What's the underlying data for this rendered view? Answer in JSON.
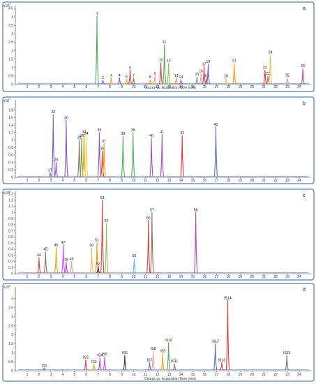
{
  "figure": {
    "xlabel": "Counts vs. Acquisition Time (min)"
  },
  "chart_data": [
    {
      "type": "line",
      "panel": "a",
      "ylabel": "x10^6",
      "scale_label": "x10",
      "scale_exponent": "6",
      "xlabel": "Counts vs. Acquisition Time (min)",
      "xlim": [
        0,
        25
      ],
      "ylim": [
        0,
        4.5
      ],
      "x_ticks": [
        1,
        2,
        3,
        4,
        5,
        6,
        7,
        8,
        9,
        10,
        11,
        12,
        13,
        14,
        15,
        16,
        17,
        18,
        19,
        20,
        21,
        22,
        23,
        24
      ],
      "y_ticks": [
        0,
        0.5,
        1,
        1.5,
        2,
        2.5,
        3,
        3.5,
        4,
        4.5
      ],
      "y_tick_labels": [
        "0",
        "0.5",
        "1",
        "1.5",
        "2",
        "2.5",
        "3",
        "3.5",
        "4",
        "4.5"
      ],
      "peaks": [
        {
          "label": "1",
          "x": 6.9,
          "y": 4.05,
          "color": "#4caf50"
        },
        {
          "label": "2",
          "x": 7.4,
          "y": 0.25,
          "color": "#7e57c2"
        },
        {
          "label": "3",
          "x": 8.1,
          "y": 0.35,
          "color": "#ff9800"
        },
        {
          "label": "4",
          "x": 8.8,
          "y": 0.4,
          "color": "#7e57c2"
        },
        {
          "label": "5",
          "x": 9.4,
          "y": 0.3,
          "color": "#ff9800"
        },
        {
          "label": "6",
          "x": 9.7,
          "y": 0.85,
          "color": "#e53935"
        },
        {
          "label": "7",
          "x": 10.0,
          "y": 0.38,
          "color": "#8d6e63"
        },
        {
          "label": "8",
          "x": 11.4,
          "y": 0.28,
          "color": "#ff9800"
        },
        {
          "label": "9",
          "x": 11.8,
          "y": 0.5,
          "color": "#ef9a9a"
        },
        {
          "label": "10",
          "x": 12.3,
          "y": 1.3,
          "color": "#e53935"
        },
        {
          "label": "11",
          "x": 12.6,
          "y": 2.35,
          "color": "#4caf50"
        },
        {
          "label": "12",
          "x": 12.95,
          "y": 1.25,
          "color": "#8bc34a"
        },
        {
          "label": "13",
          "x": 13.6,
          "y": 0.38,
          "color": "#ff9800"
        },
        {
          "label": "14",
          "x": 14.0,
          "y": 0.28,
          "color": "#7e57c2"
        },
        {
          "label": "15",
          "x": 15.35,
          "y": 0.45,
          "color": "#4caf50"
        },
        {
          "label": "16",
          "x": 15.7,
          "y": 0.65,
          "color": "#ef9a9a"
        },
        {
          "label": "17",
          "x": 15.95,
          "y": 1.05,
          "color": "#e53935"
        },
        {
          "label": "18",
          "x": 16.15,
          "y": 0.35,
          "color": "#8d6e63"
        },
        {
          "label": "19",
          "x": 16.3,
          "y": 1.2,
          "color": "#7e57c2"
        },
        {
          "label": "20",
          "x": 17.8,
          "y": 0.35,
          "color": "#ffb74d"
        },
        {
          "label": "21",
          "x": 18.5,
          "y": 1.25,
          "color": "#ff9800"
        },
        {
          "label": "22",
          "x": 21.1,
          "y": 0.85,
          "color": "#e53935"
        },
        {
          "label": "23",
          "x": 21.35,
          "y": 0.5,
          "color": "#8d6e63"
        },
        {
          "label": "24",
          "x": 21.55,
          "y": 1.75,
          "color": "#ffb74d"
        },
        {
          "label": "25",
          "x": 23.0,
          "y": 0.4,
          "color": "#ef9a9a"
        },
        {
          "label": "26",
          "x": 24.3,
          "y": 0.95,
          "color": "#ab47bc"
        }
      ]
    },
    {
      "type": "line",
      "panel": "b",
      "ylabel": "x10^7",
      "scale_label": "x10",
      "scale_exponent": "7",
      "xlabel": "",
      "xlim": [
        0,
        25
      ],
      "ylim": [
        0,
        2
      ],
      "x_ticks": [
        1,
        2,
        3,
        4,
        5,
        6,
        7,
        8,
        9,
        10,
        11,
        12,
        13,
        14,
        15,
        16,
        17,
        18,
        19,
        20,
        21,
        22,
        23,
        24
      ],
      "y_ticks": [
        0,
        0.2,
        0.4,
        0.6,
        0.8,
        1,
        1.2,
        1.4,
        1.6,
        1.8
      ],
      "y_tick_labels": [
        "0",
        "0.2",
        "0.4",
        "0.6",
        "0.8",
        "1",
        "1.2",
        "1.4",
        "1.6",
        "1.8"
      ],
      "peaks": [
        {
          "label": "27",
          "x": 2.95,
          "y": 0.12,
          "color": "#8d6e63"
        },
        {
          "label": "28",
          "x": 3.2,
          "y": 1.68,
          "color": "#5c6bc0"
        },
        {
          "label": "29",
          "x": 3.45,
          "y": 0.4,
          "color": "#ab47bc"
        },
        {
          "label": "30",
          "x": 4.3,
          "y": 1.52,
          "color": "#7e57c2"
        },
        {
          "label": "31",
          "x": 5.4,
          "y": 1.0,
          "color": "#8d6e63"
        },
        {
          "label": "32",
          "x": 5.6,
          "y": 1.05,
          "color": "#4caf50"
        },
        {
          "label": "33",
          "x": 5.8,
          "y": 1.15,
          "color": "#ff9800"
        },
        {
          "label": "34",
          "x": 6.0,
          "y": 1.1,
          "color": "#ffd54f"
        },
        {
          "label": "35",
          "x": 7.1,
          "y": 1.2,
          "color": "#7e57c2"
        },
        {
          "label": "36",
          "x": 7.35,
          "y": 0.7,
          "color": "#e53935"
        },
        {
          "label": "37",
          "x": 7.5,
          "y": 0.9,
          "color": "#ff9800"
        },
        {
          "label": "38",
          "x": 9.1,
          "y": 1.1,
          "color": "#4caf50"
        },
        {
          "label": "39",
          "x": 9.95,
          "y": 1.2,
          "color": "#4caf50"
        },
        {
          "label": "40",
          "x": 11.5,
          "y": 1.05,
          "color": "#ab47bc"
        },
        {
          "label": "41",
          "x": 12.4,
          "y": 1.15,
          "color": "#ab47bc"
        },
        {
          "label": "42",
          "x": 14.1,
          "y": 1.12,
          "color": "#e53935"
        },
        {
          "label": "43",
          "x": 16.95,
          "y": 1.35,
          "color": "#5c6bc0"
        }
      ]
    },
    {
      "type": "line",
      "panel": "c",
      "ylabel": "x10^8",
      "scale_label": "x10",
      "scale_exponent": "8",
      "xlabel": "",
      "xlim": [
        0,
        25
      ],
      "ylim": [
        0,
        1.3
      ],
      "x_ticks": [
        1,
        2,
        3,
        4,
        5,
        6,
        7,
        8,
        9,
        10,
        11,
        12,
        13,
        14,
        15,
        16,
        17,
        18,
        19,
        20,
        21,
        22,
        23,
        24
      ],
      "y_ticks": [
        0,
        0.1,
        0.2,
        0.3,
        0.4,
        0.5,
        0.6,
        0.7,
        0.8,
        0.9,
        1,
        1.1,
        1.2,
        1.3
      ],
      "y_tick_labels": [
        "0",
        "0.1",
        "0.2",
        "0.3",
        "0.4",
        "0.5",
        "0.6",
        "0.7",
        "0.8",
        "0.9",
        "1",
        "1.1",
        "1.2",
        "1.3"
      ],
      "peaks": [
        {
          "label": "44",
          "x": 2.0,
          "y": 0.26,
          "color": "#e53935"
        },
        {
          "label": "45",
          "x": 2.55,
          "y": 0.36,
          "color": "#8d6e63"
        },
        {
          "label": "46",
          "x": 3.45,
          "y": 0.43,
          "color": "#ff9800"
        },
        {
          "label": "47",
          "x": 4.05,
          "y": 0.47,
          "color": "#e040fb"
        },
        {
          "label": "48",
          "x": 4.3,
          "y": 0.19,
          "color": "#ab47bc"
        },
        {
          "label": "49",
          "x": 4.75,
          "y": 0.2,
          "color": "#ef9a9a"
        },
        {
          "label": "50",
          "x": 6.45,
          "y": 0.42,
          "color": "#ffb74d"
        },
        {
          "label": "51",
          "x": 6.9,
          "y": 0.51,
          "color": "#ff9800"
        },
        {
          "label": "52",
          "x": 7.0,
          "y": 0.12,
          "color": "#333333"
        },
        {
          "label": "53",
          "x": 7.35,
          "y": 1.2,
          "color": "#e53935"
        },
        {
          "label": "54",
          "x": 7.7,
          "y": 0.82,
          "color": "#8bc34a"
        },
        {
          "label": "55",
          "x": 10.05,
          "y": 0.25,
          "color": "#64b5f6"
        },
        {
          "label": "56",
          "x": 11.25,
          "y": 0.87,
          "color": "#e53935"
        },
        {
          "label": "57",
          "x": 11.55,
          "y": 1.0,
          "color": "#8d6e63"
        },
        {
          "label": "58",
          "x": 15.25,
          "y": 1.0,
          "color": "#ab47bc"
        }
      ]
    },
    {
      "type": "line",
      "panel": "d",
      "ylabel": "x10^6",
      "scale_label": "x10",
      "scale_exponent": "6",
      "xlabel": "Counts vs. Acquisition Time (min)",
      "xlim": [
        0,
        25
      ],
      "ylim": [
        0,
        4.5
      ],
      "x_ticks": [
        1,
        2,
        3,
        4,
        5,
        6,
        7,
        8,
        9,
        10,
        11,
        12,
        13,
        14,
        15,
        16,
        17,
        18,
        19,
        20,
        21,
        22,
        23,
        24
      ],
      "y_ticks": [
        0,
        0.5,
        1,
        1.5,
        2,
        2.5,
        3,
        3.5,
        4
      ],
      "y_tick_labels": [
        "0",
        "0.5",
        "1",
        "1.5",
        "2",
        "2.5",
        "3",
        "3.5",
        "4"
      ],
      "peaks": [
        {
          "label": "IS1",
          "x": 2.45,
          "y": 0.15,
          "color": "#8d6e63"
        },
        {
          "label": "IS2",
          "x": 5.95,
          "y": 0.6,
          "color": "#e53935"
        },
        {
          "label": "IS3",
          "x": 6.65,
          "y": 0.35,
          "color": "#ff9800"
        },
        {
          "label": "IS4",
          "x": 7.15,
          "y": 0.72,
          "color": "#ab47bc"
        },
        {
          "label": "IS5",
          "x": 7.55,
          "y": 0.78,
          "color": "#e040fb"
        },
        {
          "label": "IS6",
          "x": 9.25,
          "y": 0.85,
          "color": "#333333"
        },
        {
          "label": "IS7",
          "x": 11.35,
          "y": 0.45,
          "color": "#5c6bc0"
        },
        {
          "label": "IS8",
          "x": 11.65,
          "y": 1.08,
          "color": "#ef9a9a"
        },
        {
          "label": "IS9",
          "x": 12.45,
          "y": 0.95,
          "color": "#ff9800"
        },
        {
          "label": "IS10",
          "x": 12.95,
          "y": 1.55,
          "color": "#4caf50"
        },
        {
          "label": "IS11",
          "x": 13.45,
          "y": 0.38,
          "color": "#8d6e63"
        },
        {
          "label": "IS12",
          "x": 16.9,
          "y": 1.5,
          "color": "#5c6bc0"
        },
        {
          "label": "IS13",
          "x": 17.45,
          "y": 0.45,
          "color": "#e53935"
        },
        {
          "label": "IS14",
          "x": 17.95,
          "y": 3.9,
          "color": "#e53935"
        },
        {
          "label": "IS15",
          "x": 22.95,
          "y": 0.85,
          "color": "#8d6e63"
        }
      ]
    }
  ]
}
